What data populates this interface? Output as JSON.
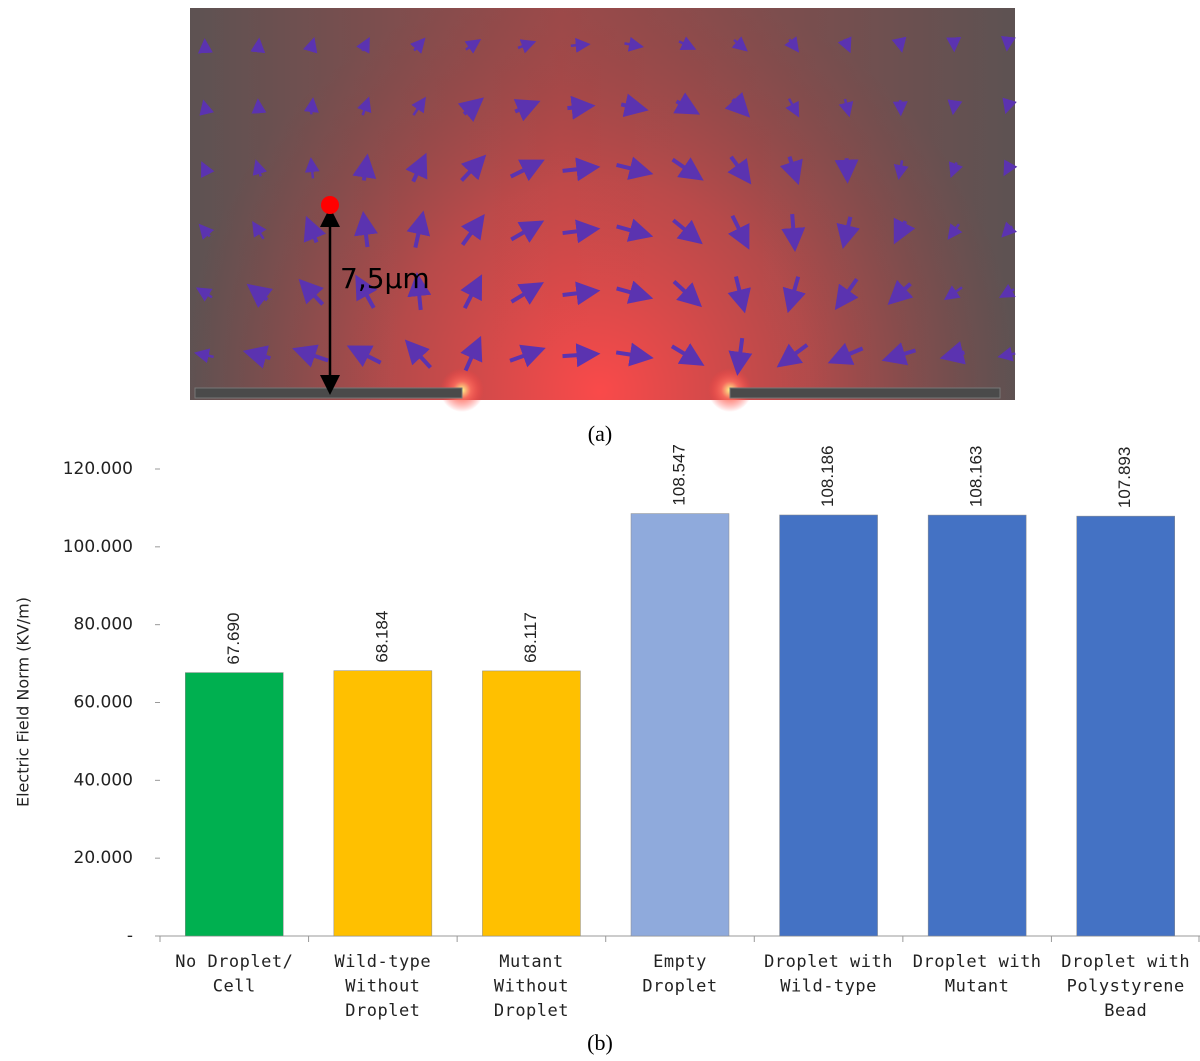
{
  "image": {
    "annotation": "7,5μm",
    "caption": "(a)"
  },
  "chart_data": {
    "type": "bar",
    "caption": "(b)",
    "y_label": "Electric Field Norm (KV/m)",
    "categories": [
      "No Droplet/\nCell",
      "Wild-type\nWithout\nDroplet",
      "Mutant\nWithout\nDroplet",
      "Empty\nDroplet",
      "Droplet with\nWild-type",
      "Droplet with\nMutant",
      "Droplet with\nPolystyrene\nBead"
    ],
    "values": [
      67.69,
      68.184,
      68.117,
      108.547,
      108.186,
      108.163,
      107.893
    ],
    "value_labels": [
      "67.690",
      "68.184",
      "68.117",
      "108.547",
      "108.186",
      "108.163",
      "107.893"
    ],
    "colors": [
      "#00b050",
      "#ffc000",
      "#ffc000",
      "#8faadc",
      "#4472c4",
      "#4472c4",
      "#4472c4"
    ],
    "ylim": [
      0,
      120
    ],
    "yticks": [
      {
        "value": 0,
        "label": "-"
      },
      {
        "value": 20,
        "label": "20.000"
      },
      {
        "value": 40,
        "label": "40.000"
      },
      {
        "value": 60,
        "label": "60.000"
      },
      {
        "value": 80,
        "label": "80.000"
      },
      {
        "value": 100,
        "label": "100.000"
      },
      {
        "value": 120,
        "label": "120.000"
      }
    ],
    "grid": false
  }
}
